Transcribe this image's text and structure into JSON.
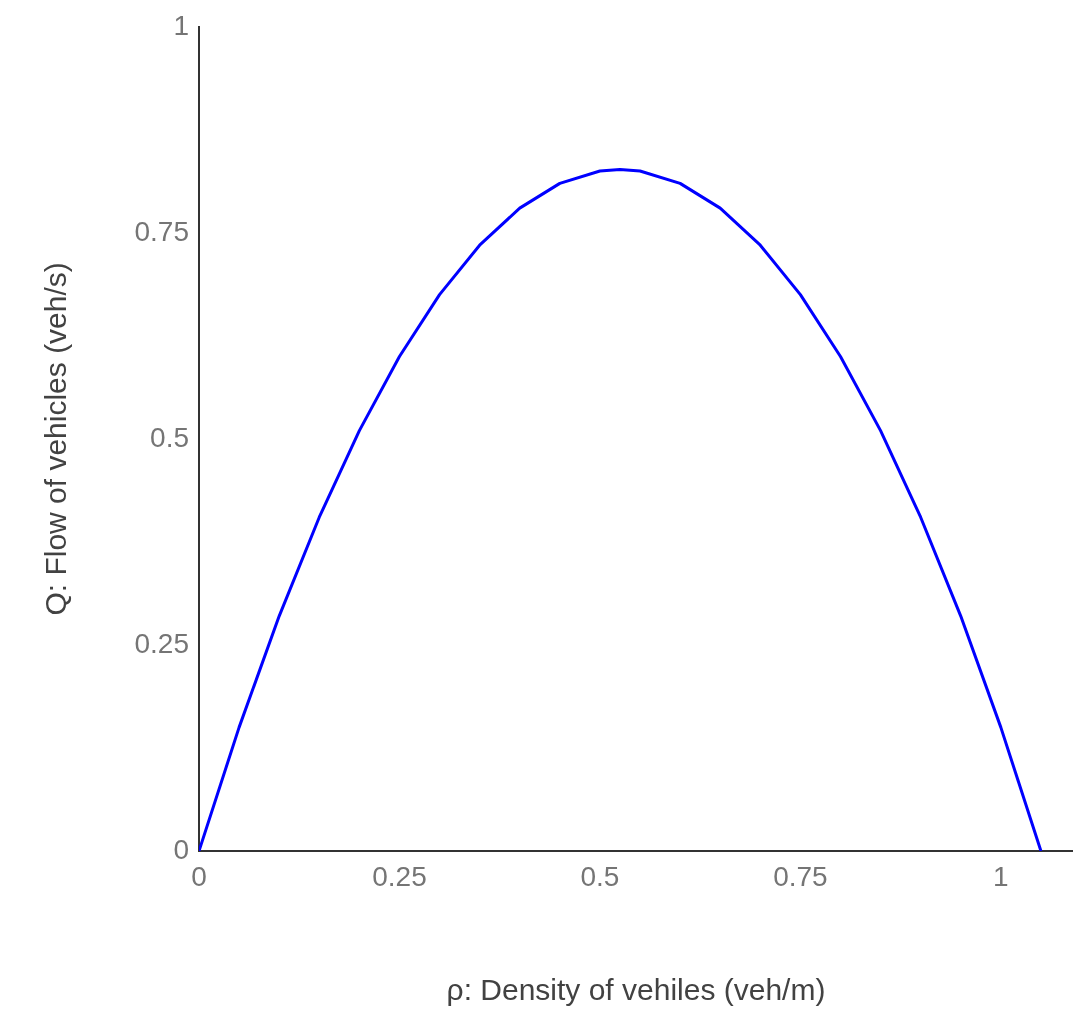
{
  "chart_data": {
    "type": "line",
    "xlabel": "ρ: Density of vehiles (veh/m)",
    "ylabel": "Q: Flow of vehicles (veh/s)",
    "x": [
      0,
      0.05,
      0.1,
      0.15,
      0.2,
      0.25,
      0.3,
      0.35,
      0.4,
      0.45,
      0.5,
      0.525,
      0.55,
      0.6,
      0.65,
      0.7,
      0.75,
      0.8,
      0.85,
      0.9,
      0.95,
      1.0,
      1.05
    ],
    "series": [
      {
        "color": "#0000ff",
        "values": [
          0,
          0.15,
          0.285,
          0.405,
          0.51,
          0.6,
          0.675,
          0.735,
          0.78,
          0.81,
          0.825,
          0.827,
          0.825,
          0.81,
          0.78,
          0.735,
          0.675,
          0.6,
          0.51,
          0.405,
          0.285,
          0.15,
          0
        ]
      }
    ],
    "xlim": [
      0,
      1.09
    ],
    "xticks": [
      0,
      0.25,
      0.5,
      0.75,
      1
    ],
    "ylim": [
      0,
      1
    ],
    "yticks": [
      0,
      0.25,
      0.5,
      0.75,
      1
    ],
    "grid": false,
    "legend": false,
    "marker": "none",
    "line_style": "solid"
  }
}
